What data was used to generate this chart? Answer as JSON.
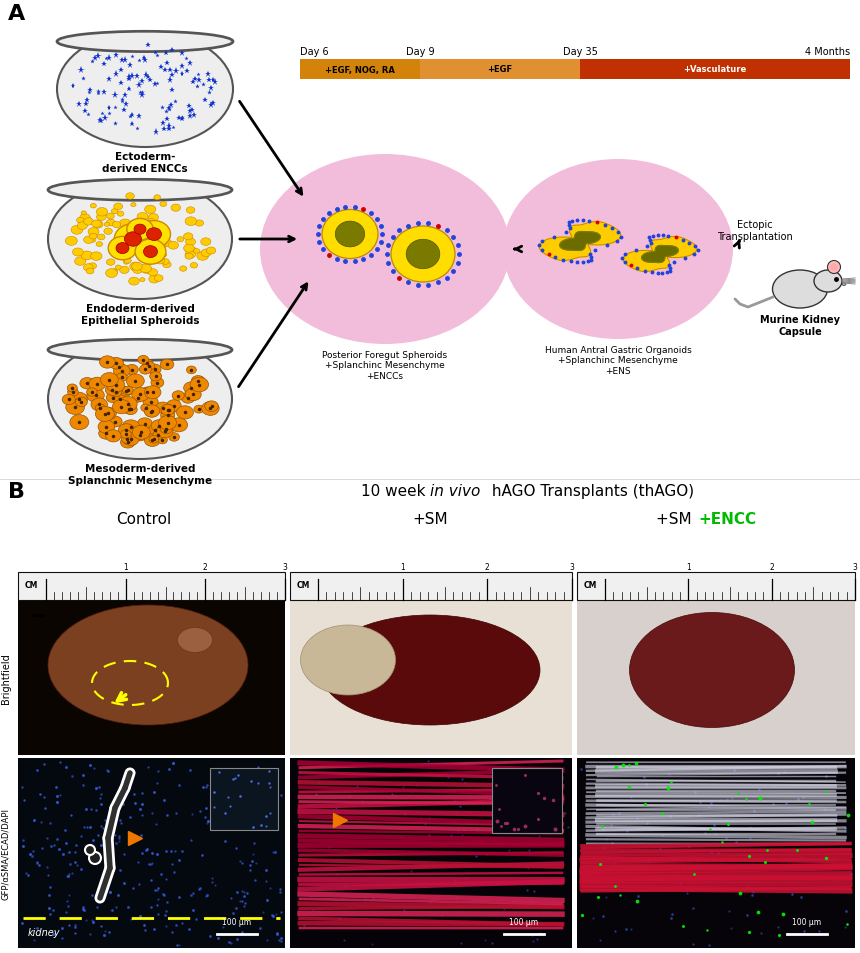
{
  "panel_A_label": "A",
  "panel_B_label": "B",
  "panel_A_top_label": "Ectoderm-\nderived ENCCs",
  "panel_A_mid_label": "Endoderm-derived\nEpithelial Spheroids",
  "panel_A_bot_label": "Mesoderm-derived\nSplanchnic Mesenchyme",
  "panel_A_stage1_label": "Posterior Foregut Spheroids\n+Splanchinc Mesenchyme\n+ENCCs",
  "panel_A_stage2_label": "Human Antral Gastric Organoids\n+Splanchinc Mesenchyme\n+ENS",
  "panel_A_stage3_label": "Ectopic\nTransplantation",
  "panel_A_kidney_label": "Murine Kidney\nCapsule",
  "timeline_day6": "Day 6",
  "timeline_day9": "Day 9",
  "timeline_day35": "Day 35",
  "timeline_4mo": "4 Months",
  "timeline_t1": "+EGF, NOG, RA",
  "timeline_t2": "+EGF",
  "timeline_t3": "+Vasculature",
  "timeline_c1": "#D4830A",
  "timeline_c2": "#E09020",
  "timeline_c3": "#C03000",
  "panel_B_t1": "10 week ",
  "panel_B_t2": "in vivo",
  "panel_B_t3": " hAGO Transplants (thAGO)",
  "col1": "Control",
  "col2": "+SM",
  "col3a": "+SM ",
  "col3b": "+ENCC",
  "row1": "Brightfield",
  "row2": "GFP/αSMA/ECAD/DAPI",
  "kidney_label": "kidney",
  "bg": "#ffffff"
}
